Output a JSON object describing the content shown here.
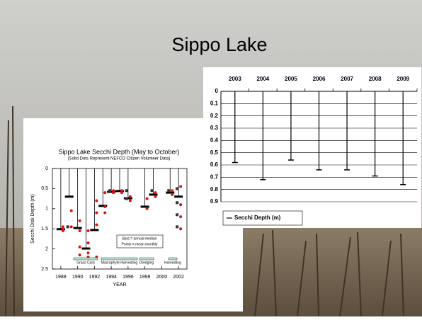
{
  "slide_title": "Sippo Lake",
  "chart_data": [
    {
      "type": "errorbar",
      "title": "Sippo Lake Secchi Depth (May to October)",
      "subtitle": "(Solid Dots Represent NEFCO Citizen Volunteer Data)",
      "xlabel": "YEAR",
      "ylabel": "Secchi Disk Depth (m)",
      "x": [
        1988,
        1989,
        1990,
        1991,
        1992,
        1993,
        1994,
        1995,
        1996,
        1998,
        1999,
        2001,
        2002
      ],
      "values": [
        1.51,
        0.7,
        1.48,
        1.99,
        1.53,
        0.93,
        0.58,
        0.56,
        0.74,
        0.95,
        0.65,
        0.6,
        0.7
      ],
      "color": "#000000",
      "points": [
        {
          "color": "#e01010",
          "x": [
            1988,
            1988,
            1988,
            1989,
            1989,
            1990,
            1990,
            1990,
            1990,
            1991,
            1991,
            1991,
            1991,
            1992,
            1992,
            1992,
            1992,
            1993,
            1993,
            1993,
            1994,
            1994,
            1995,
            1995,
            1996,
            1996,
            1998,
            1998,
            1999,
            1999,
            2001,
            2001,
            2002,
            2002,
            2002,
            2002
          ],
          "y": [
            1.45,
            1.55,
            1.5,
            1.05,
            1.45,
            1.55,
            1.3,
            1.95,
            2.15,
            1.55,
            1.85,
            2.1,
            2.2,
            0.8,
            1.1,
            1.4,
            2.2,
            0.6,
            0.95,
            1.1,
            0.55,
            0.6,
            0.55,
            0.6,
            0.7,
            0.8,
            0.75,
            1.0,
            0.6,
            0.7,
            0.55,
            0.65,
            0.45,
            0.9,
            1.2,
            1.5
          ]
        },
        {
          "color": "#333333",
          "x": [
            1989,
            1994,
            1996,
            1996,
            1999,
            2001,
            2002,
            2002,
            2002,
            2002
          ],
          "y": [
            1.45,
            0.55,
            0.55,
            0.75,
            0.55,
            0.55,
            0.5,
            0.85,
            1.15,
            1.45
          ]
        }
      ],
      "xlim": [
        1987,
        2003
      ],
      "xticks": [
        1988,
        1990,
        1992,
        1994,
        1996,
        1998,
        2000,
        2002
      ],
      "ylim": [
        0,
        2.5
      ],
      "yticks": [
        0,
        0.5,
        1,
        1.5,
        2,
        2.5
      ],
      "y_inverted": true,
      "annotations": [
        "Bars = annual median",
        "Points = mean monthly"
      ],
      "periods": [
        "Grass Carp",
        "Macrophyte Harvesting",
        "Dredging",
        "Harvesting"
      ]
    },
    {
      "type": "whisker",
      "categories": [
        "2003",
        "2004",
        "2005",
        "2006",
        "2007",
        "2008",
        "2009"
      ],
      "series": [
        {
          "name": "Secchi Depth (m)",
          "color": "#000000",
          "values": [
            0.58,
            0.72,
            0.56,
            0.64,
            0.64,
            0.69,
            0.76
          ]
        }
      ],
      "ylim": [
        0,
        0.9
      ],
      "yticks": [
        0,
        0.1,
        0.2,
        0.3,
        0.4,
        0.5,
        0.6,
        0.7,
        0.8,
        0.9
      ],
      "y_inverted": true,
      "grid": true,
      "legend": "bottom"
    }
  ]
}
